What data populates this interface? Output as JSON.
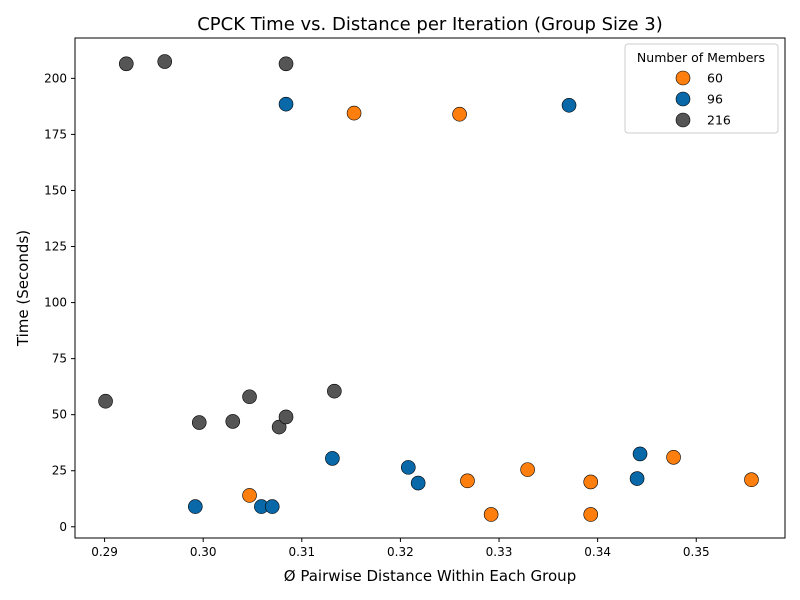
{
  "chart_data": {
    "type": "scatter",
    "title": "CPCK Time vs. Distance per Iteration (Group Size 3)",
    "xlabel": "Ø Pairwise Distance Within Each Group",
    "ylabel": "Time (Seconds)",
    "xlim": [
      0.287,
      0.359
    ],
    "ylim": [
      -5,
      218
    ],
    "xticks": [
      0.29,
      0.3,
      0.31,
      0.32,
      0.33,
      0.34,
      0.35
    ],
    "xtick_labels": [
      "0.29",
      "0.30",
      "0.31",
      "0.32",
      "0.33",
      "0.34",
      "0.35"
    ],
    "yticks": [
      0,
      25,
      50,
      75,
      100,
      125,
      150,
      175,
      200
    ],
    "ytick_labels": [
      "0",
      "25",
      "50",
      "75",
      "100",
      "125",
      "150",
      "175",
      "200"
    ],
    "grid": false,
    "legend": {
      "title": "Number of Members",
      "placement": "top-right",
      "entries": [
        "60",
        "96",
        "216"
      ]
    },
    "series": [
      {
        "name": "60",
        "color": "#ff7f0e",
        "points": [
          {
            "x": 0.3153,
            "y": 184.5
          },
          {
            "x": 0.326,
            "y": 184.0
          },
          {
            "x": 0.3047,
            "y": 14.0
          },
          {
            "x": 0.3268,
            "y": 20.5
          },
          {
            "x": 0.3292,
            "y": 5.5
          },
          {
            "x": 0.3329,
            "y": 25.5
          },
          {
            "x": 0.3393,
            "y": 20.0
          },
          {
            "x": 0.3393,
            "y": 5.5
          },
          {
            "x": 0.3477,
            "y": 31.0
          },
          {
            "x": 0.3556,
            "y": 21.0
          }
        ]
      },
      {
        "name": "96",
        "color": "#0868a8",
        "points": [
          {
            "x": 0.3084,
            "y": 188.5
          },
          {
            "x": 0.3371,
            "y": 188.0
          },
          {
            "x": 0.2992,
            "y": 9.0
          },
          {
            "x": 0.3059,
            "y": 9.0
          },
          {
            "x": 0.307,
            "y": 9.0
          },
          {
            "x": 0.3131,
            "y": 30.5
          },
          {
            "x": 0.3208,
            "y": 26.5
          },
          {
            "x": 0.3218,
            "y": 19.5
          },
          {
            "x": 0.344,
            "y": 21.5
          },
          {
            "x": 0.3443,
            "y": 32.5
          }
        ]
      },
      {
        "name": "216",
        "color": "#555555",
        "points": [
          {
            "x": 0.2922,
            "y": 206.5
          },
          {
            "x": 0.2961,
            "y": 207.5
          },
          {
            "x": 0.3084,
            "y": 206.5
          },
          {
            "x": 0.2901,
            "y": 56.0
          },
          {
            "x": 0.2996,
            "y": 46.5
          },
          {
            "x": 0.303,
            "y": 47.0
          },
          {
            "x": 0.3047,
            "y": 58.0
          },
          {
            "x": 0.3077,
            "y": 44.5
          },
          {
            "x": 0.3084,
            "y": 49.0
          },
          {
            "x": 0.3133,
            "y": 60.5
          }
        ]
      }
    ]
  }
}
